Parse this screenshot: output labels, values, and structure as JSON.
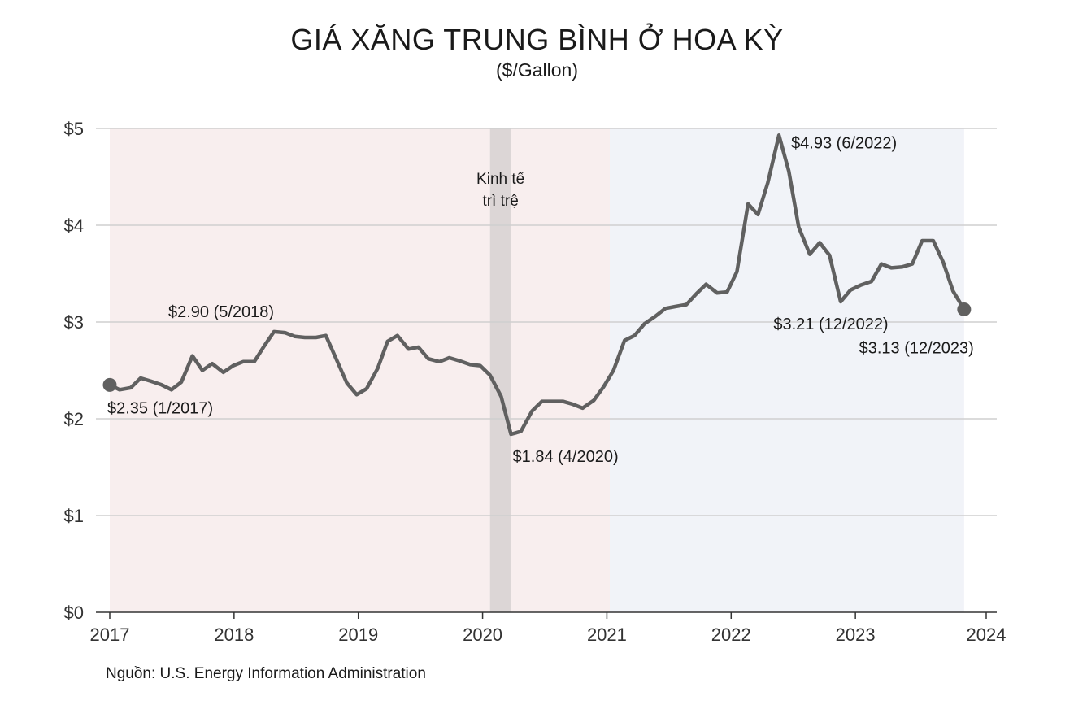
{
  "chart_data": {
    "type": "line",
    "title": "GIÁ XĂNG TRUNG BÌNH Ở HOA KỲ",
    "subtitle": "($/Gallon)",
    "xlabel": "",
    "ylabel": "",
    "x_ticks": [
      "2017",
      "2018",
      "2019",
      "2020",
      "2021",
      "2022",
      "2023",
      "2024"
    ],
    "y_ticks": [
      "$0",
      "$1",
      "$2",
      "$3",
      "$4",
      "$5"
    ],
    "ylim": [
      0,
      5
    ],
    "xlim": [
      2017.0,
      2024.0
    ],
    "grid": "horizontal",
    "shaded_periods": [
      {
        "start": 2017.0,
        "end": 2021.05,
        "color": "#f8eeee"
      },
      {
        "start": 2021.05,
        "end": 2023.92,
        "color": "#f1f3f8"
      },
      {
        "start": 2020.08,
        "end": 2020.25,
        "color": "#dcd6d6",
        "label_line1": "Kinh tế",
        "label_line2": "trì trệ"
      }
    ],
    "series": [
      {
        "color": "#606060",
        "points": [
          [
            2017.0,
            2.35
          ],
          [
            2017.08,
            2.3
          ],
          [
            2017.17,
            2.32
          ],
          [
            2017.25,
            2.42
          ],
          [
            2017.33,
            2.39
          ],
          [
            2017.42,
            2.35
          ],
          [
            2017.5,
            2.3
          ],
          [
            2017.58,
            2.38
          ],
          [
            2017.67,
            2.65
          ],
          [
            2017.75,
            2.5
          ],
          [
            2017.83,
            2.57
          ],
          [
            2017.92,
            2.48
          ],
          [
            2018.0,
            2.55
          ],
          [
            2018.08,
            2.59
          ],
          [
            2018.17,
            2.59
          ],
          [
            2018.25,
            2.75
          ],
          [
            2018.33,
            2.9
          ],
          [
            2018.42,
            2.89
          ],
          [
            2018.5,
            2.85
          ],
          [
            2018.58,
            2.84
          ],
          [
            2018.67,
            2.84
          ],
          [
            2018.75,
            2.86
          ],
          [
            2018.83,
            2.63
          ],
          [
            2018.92,
            2.37
          ],
          [
            2019.0,
            2.25
          ],
          [
            2019.08,
            2.31
          ],
          [
            2019.17,
            2.52
          ],
          [
            2019.25,
            2.8
          ],
          [
            2019.33,
            2.86
          ],
          [
            2019.42,
            2.72
          ],
          [
            2019.5,
            2.74
          ],
          [
            2019.58,
            2.62
          ],
          [
            2019.67,
            2.59
          ],
          [
            2019.75,
            2.63
          ],
          [
            2019.83,
            2.6
          ],
          [
            2019.92,
            2.56
          ],
          [
            2020.0,
            2.55
          ],
          [
            2020.08,
            2.45
          ],
          [
            2020.17,
            2.23
          ],
          [
            2020.25,
            1.84
          ],
          [
            2020.33,
            1.87
          ],
          [
            2020.42,
            2.08
          ],
          [
            2020.5,
            2.18
          ],
          [
            2020.58,
            2.18
          ],
          [
            2020.67,
            2.18
          ],
          [
            2020.75,
            2.15
          ],
          [
            2020.83,
            2.11
          ],
          [
            2020.92,
            2.19
          ],
          [
            2021.0,
            2.33
          ],
          [
            2021.08,
            2.5
          ],
          [
            2021.17,
            2.81
          ],
          [
            2021.25,
            2.86
          ],
          [
            2021.33,
            2.98
          ],
          [
            2021.42,
            3.06
          ],
          [
            2021.5,
            3.14
          ],
          [
            2021.58,
            3.16
          ],
          [
            2021.67,
            3.18
          ],
          [
            2021.75,
            3.29
          ],
          [
            2021.83,
            3.39
          ],
          [
            2021.92,
            3.3
          ],
          [
            2022.0,
            3.31
          ],
          [
            2022.08,
            3.52
          ],
          [
            2022.17,
            4.22
          ],
          [
            2022.25,
            4.11
          ],
          [
            2022.33,
            4.44
          ],
          [
            2022.42,
            4.93
          ],
          [
            2022.5,
            4.56
          ],
          [
            2022.58,
            3.98
          ],
          [
            2022.67,
            3.7
          ],
          [
            2022.75,
            3.82
          ],
          [
            2022.83,
            3.69
          ],
          [
            2022.92,
            3.21
          ],
          [
            2023.0,
            3.33
          ],
          [
            2023.08,
            3.38
          ],
          [
            2023.17,
            3.42
          ],
          [
            2023.25,
            3.6
          ],
          [
            2023.33,
            3.56
          ],
          [
            2023.42,
            3.57
          ],
          [
            2023.5,
            3.6
          ],
          [
            2023.58,
            3.84
          ],
          [
            2023.67,
            3.84
          ],
          [
            2023.75,
            3.62
          ],
          [
            2023.83,
            3.32
          ],
          [
            2023.92,
            3.13
          ]
        ]
      }
    ],
    "markers": [
      {
        "x": 2017.0,
        "y": 2.35
      },
      {
        "x": 2023.92,
        "y": 3.13
      }
    ],
    "annotations": [
      {
        "text": "$2.35 (1/2017)",
        "x": 2017.0,
        "y": 2.35
      },
      {
        "text": "$2.90 (5/2018)",
        "x": 2018.33,
        "y": 2.9
      },
      {
        "text": "$1.84 (4/2020)",
        "x": 2020.25,
        "y": 1.84
      },
      {
        "text": "$4.93 (6/2022)",
        "x": 2022.42,
        "y": 4.93
      },
      {
        "text": "$3.21 (12/2022)",
        "x": 2022.92,
        "y": 3.21
      },
      {
        "text": "$3.13 (12/2023)",
        "x": 2023.92,
        "y": 3.13
      }
    ],
    "source": "Nguồn: U.S. Energy Information Administration"
  }
}
